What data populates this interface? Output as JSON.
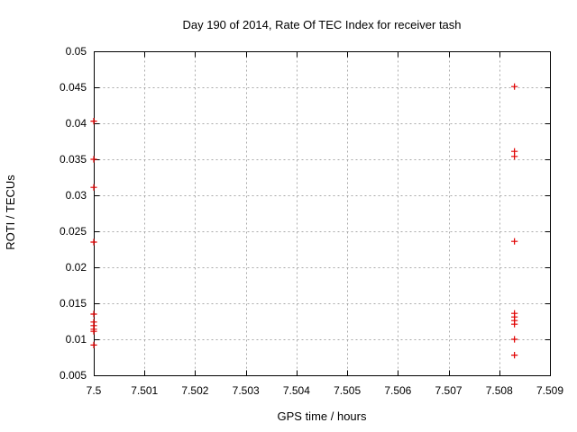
{
  "page": {
    "background": "#ffffff",
    "foreground": "#000000"
  },
  "chart_data": {
    "type": "scatter",
    "title": "Day 190 of 2014, Rate Of TEC Index for receiver tash",
    "xlabel": "GPS time / hours",
    "ylabel": "ROTI / TECUs",
    "xlim": [
      7.5,
      7.509
    ],
    "ylim": [
      0.005,
      0.05
    ],
    "x_tick_values": [
      7.5,
      7.501,
      7.502,
      7.503,
      7.504,
      7.505,
      7.506,
      7.507,
      7.508,
      7.509
    ],
    "x_tick_labels": [
      "7.5",
      "7.501",
      "7.502",
      "7.503",
      "7.504",
      "7.505",
      "7.506",
      "7.507",
      "7.508",
      "7.509"
    ],
    "y_tick_values": [
      0.005,
      0.01,
      0.015,
      0.02,
      0.025,
      0.03,
      0.035,
      0.04,
      0.045,
      0.05
    ],
    "y_tick_labels": [
      "0.005",
      "0.01",
      "0.015",
      "0.02",
      "0.025",
      "0.03",
      "0.035",
      "0.04",
      "0.045",
      "0.05"
    ],
    "grid": true,
    "grid_style": "dotted",
    "grid_color": "#a8a8a8",
    "legend": "none",
    "marker": "plus",
    "series": [
      {
        "name": "ROTI",
        "color": "#e00000",
        "points": [
          [
            7.5,
            0.0403
          ],
          [
            7.5,
            0.035
          ],
          [
            7.5,
            0.0311
          ],
          [
            7.5,
            0.0235
          ],
          [
            7.5,
            0.0135
          ],
          [
            7.5,
            0.0124
          ],
          [
            7.5,
            0.0119
          ],
          [
            7.5,
            0.0114
          ],
          [
            7.5,
            0.0111
          ],
          [
            7.5,
            0.0092
          ],
          [
            7.5083,
            0.0451
          ],
          [
            7.5083,
            0.0361
          ],
          [
            7.5083,
            0.0354
          ],
          [
            7.5083,
            0.0236
          ],
          [
            7.5083,
            0.0136
          ],
          [
            7.5083,
            0.0131
          ],
          [
            7.5083,
            0.0126
          ],
          [
            7.5083,
            0.0121
          ],
          [
            7.5083,
            0.01
          ],
          [
            7.5083,
            0.0078
          ]
        ]
      }
    ]
  }
}
